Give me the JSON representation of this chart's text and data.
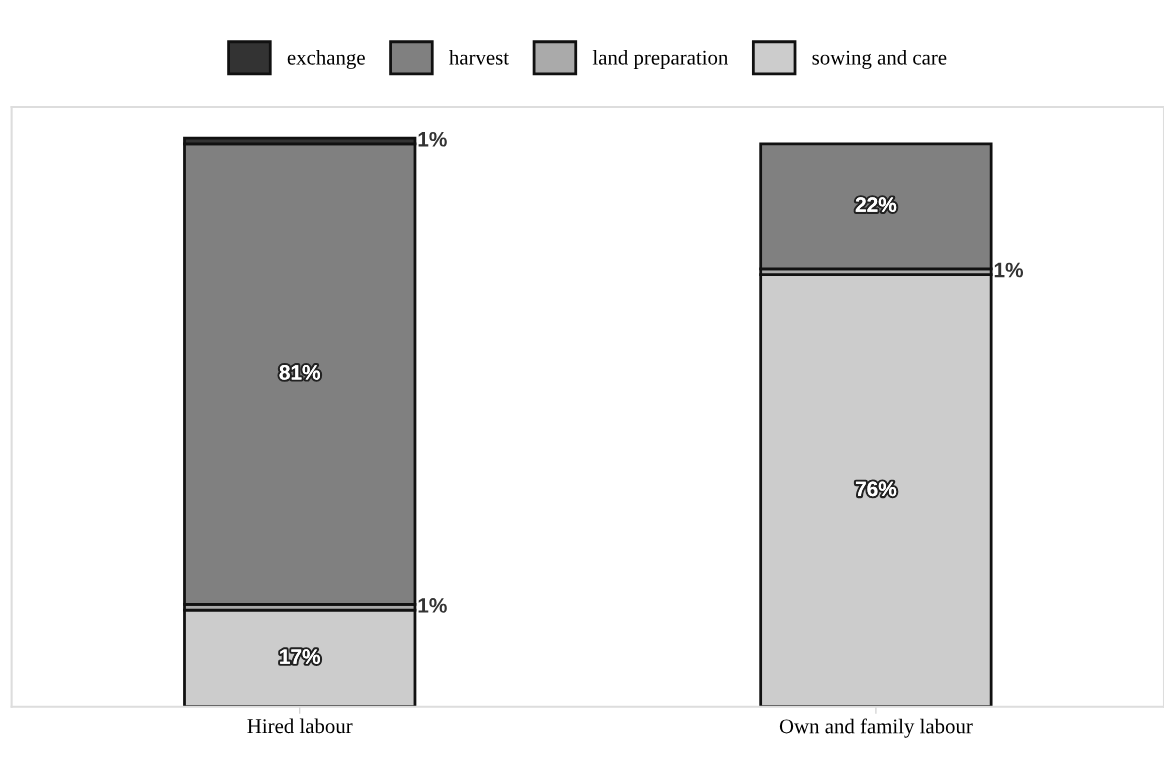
{
  "chart_data": {
    "type": "bar",
    "stacked": true,
    "legend": "top",
    "grid": false,
    "tick_labels": "x",
    "categories": [
      "Hired labour",
      "Own and family labour"
    ],
    "series": [
      {
        "name": "sowing and care",
        "color": "#cccccc",
        "values": [
          17,
          76
        ],
        "value_labels": [
          "17%",
          "76%"
        ]
      },
      {
        "name": "land preparation",
        "color": "#aaaaaa",
        "values": [
          1,
          1
        ],
        "value_labels": [
          "1%",
          "1%"
        ]
      },
      {
        "name": "harvest",
        "color": "#808080",
        "values": [
          81,
          22
        ],
        "value_labels": [
          "81%",
          "22%"
        ]
      },
      {
        "name": "exchange",
        "color": "#333333",
        "values": [
          1,
          null
        ],
        "value_labels": [
          "1%",
          null
        ]
      }
    ]
  }
}
